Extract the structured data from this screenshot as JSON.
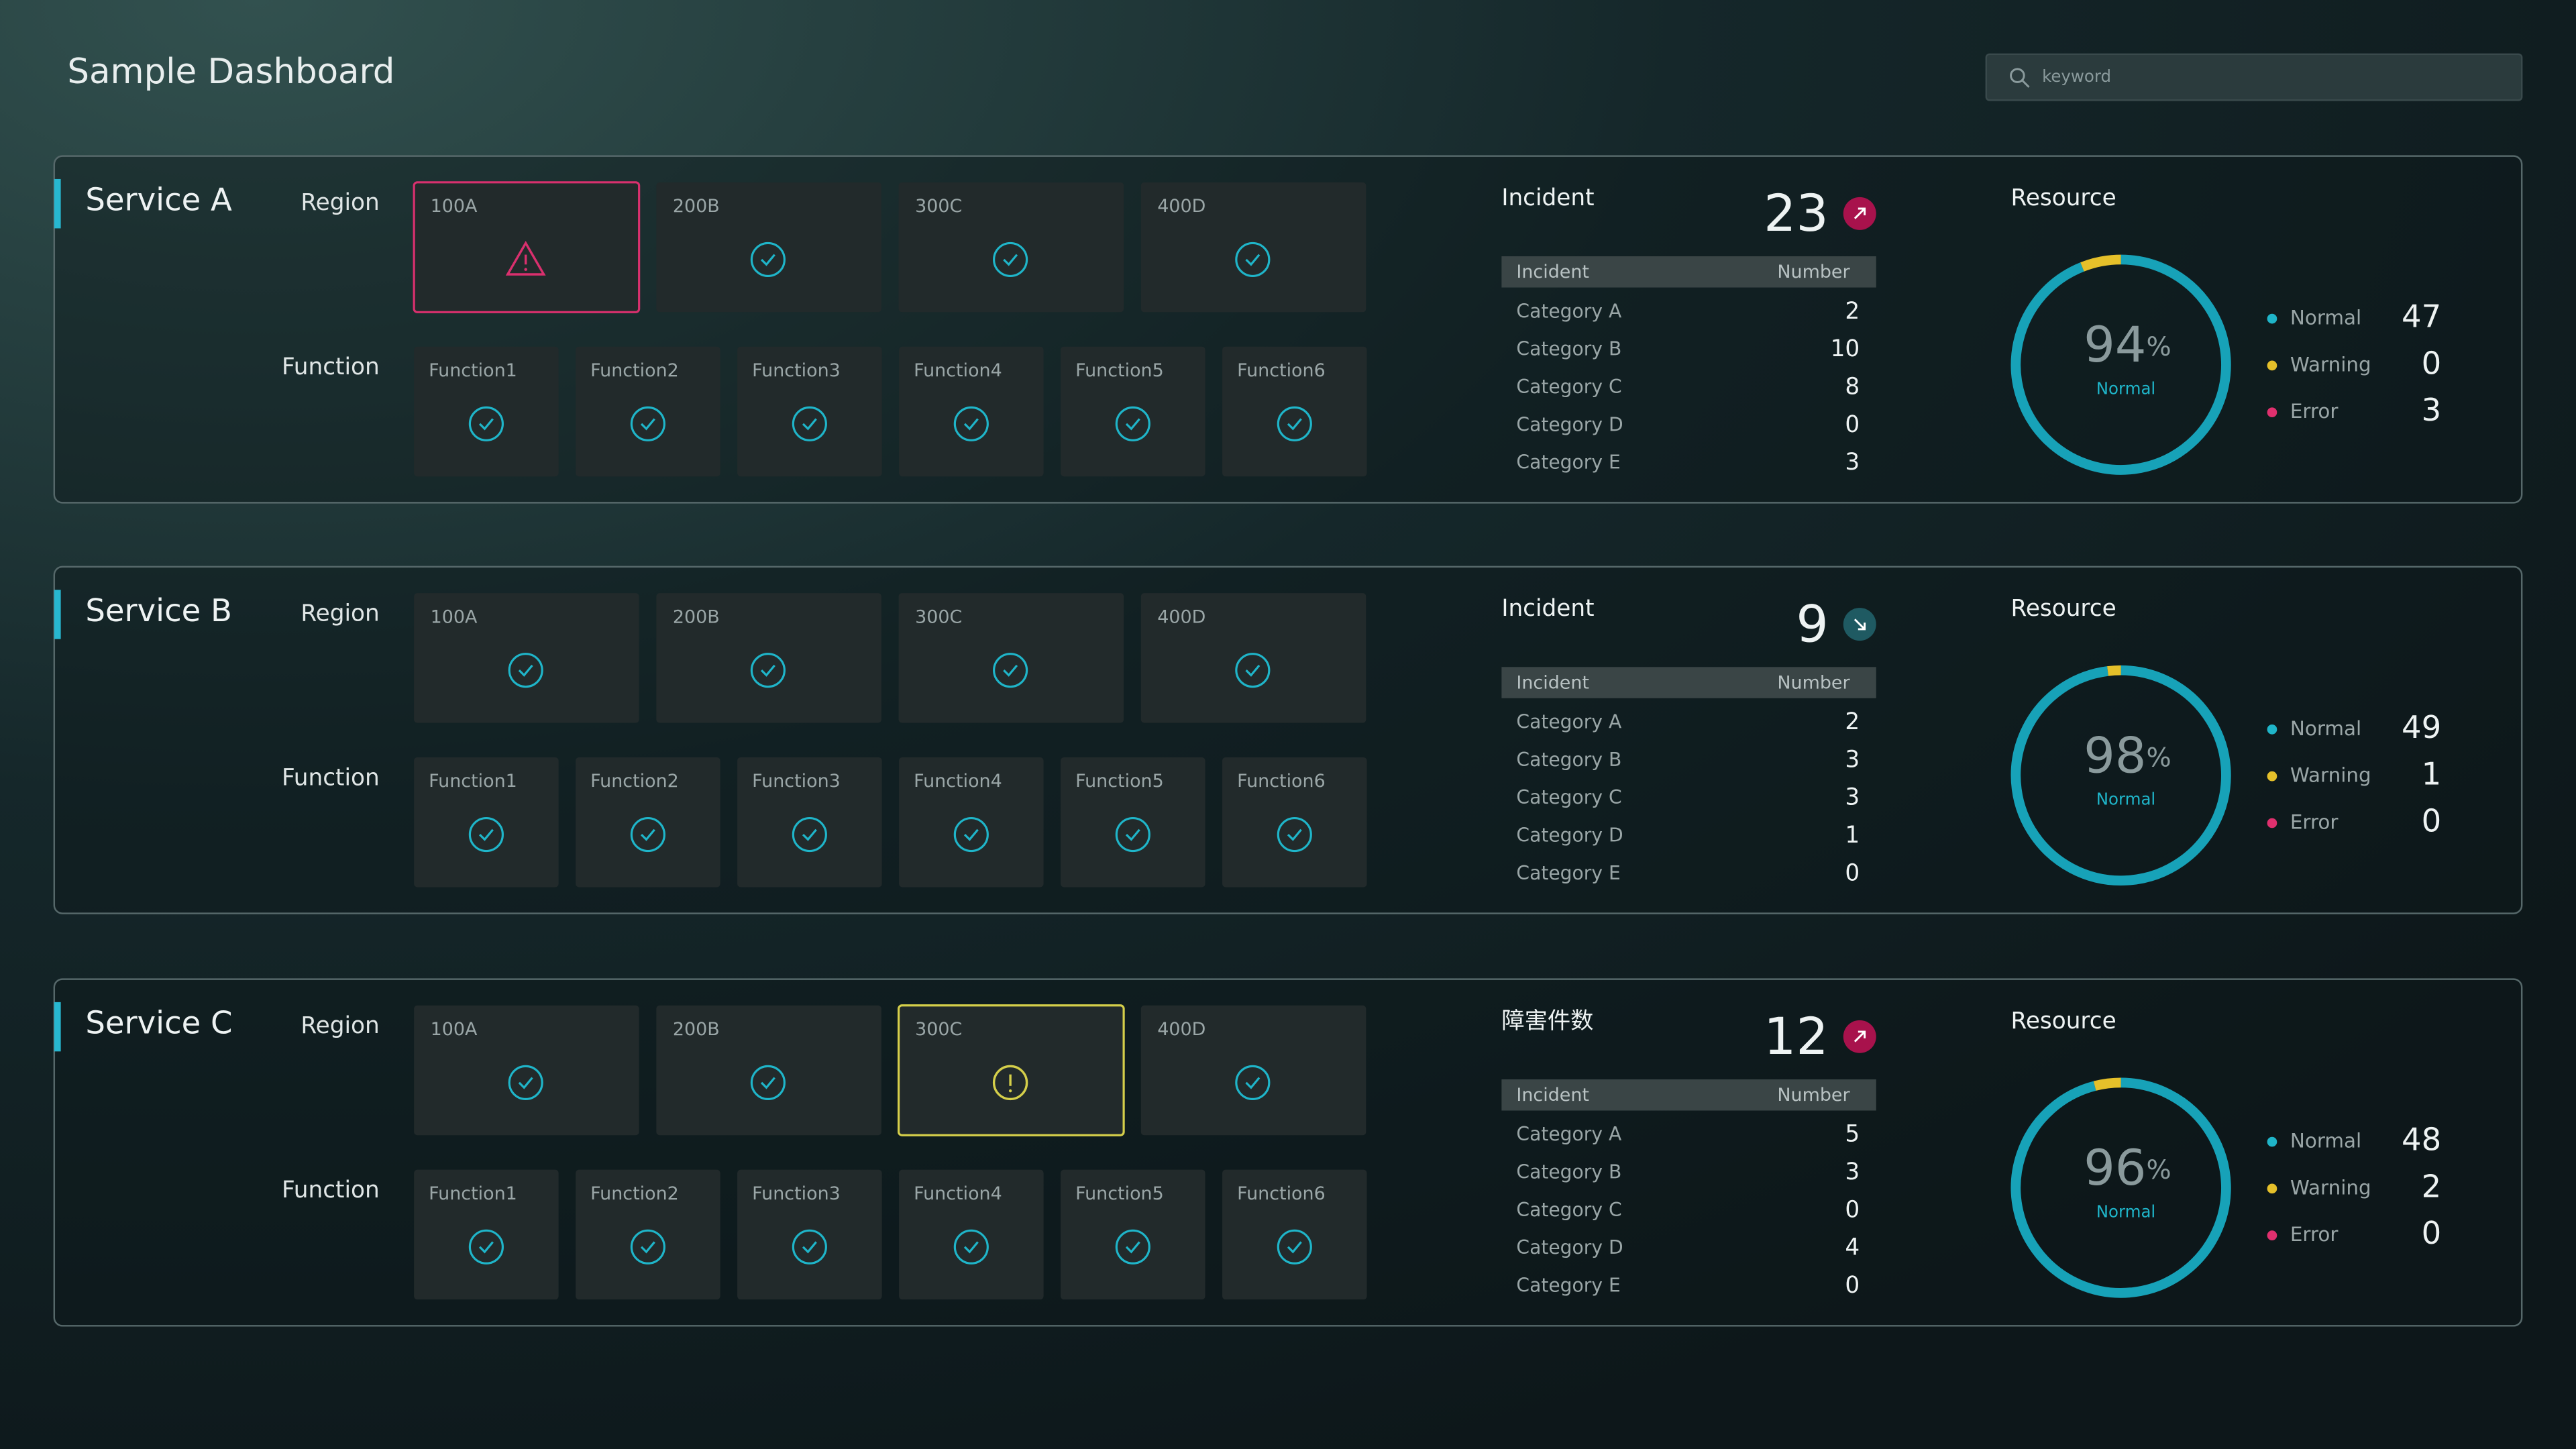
{
  "header": {
    "title": "Sample Dashboard",
    "search_placeholder": "keyword"
  },
  "services": [
    {
      "name": "Service A",
      "region_label": "Region",
      "function_label": "Function",
      "regions": [
        {
          "label": "100A",
          "status": "error"
        },
        {
          "label": "200B",
          "status": "ok"
        },
        {
          "label": "300C",
          "status": "ok"
        },
        {
          "label": "400D",
          "status": "ok"
        }
      ],
      "functions": [
        {
          "label": "Function1",
          "status": "ok"
        },
        {
          "label": "Function2",
          "status": "ok"
        },
        {
          "label": "Function3",
          "status": "ok"
        },
        {
          "label": "Function4",
          "status": "ok"
        },
        {
          "label": "Function5",
          "status": "ok"
        },
        {
          "label": "Function6",
          "status": "ok"
        }
      ],
      "incident": {
        "title": "Incident",
        "total": 23,
        "trend": "up",
        "headers": [
          "Incident",
          "Number"
        ],
        "rows": [
          {
            "category": "Category A",
            "number": 2
          },
          {
            "category": "Category B",
            "number": 10
          },
          {
            "category": "Category C",
            "number": 8
          },
          {
            "category": "Category D",
            "number": 0
          },
          {
            "category": "Category E",
            "number": 3
          }
        ]
      },
      "resource": {
        "title": "Resource",
        "percent": 94,
        "unit": "%",
        "status": "Normal",
        "legend": [
          {
            "label": "Normal",
            "value": 47,
            "color": "#1fb5c9"
          },
          {
            "label": "Warning",
            "value": 0,
            "color": "#e5c02a"
          },
          {
            "label": "Error",
            "value": 3,
            "color": "#e0306e"
          }
        ]
      }
    },
    {
      "name": "Service B",
      "region_label": "Region",
      "function_label": "Function",
      "regions": [
        {
          "label": "100A",
          "status": "ok"
        },
        {
          "label": "200B",
          "status": "ok"
        },
        {
          "label": "300C",
          "status": "ok"
        },
        {
          "label": "400D",
          "status": "ok"
        }
      ],
      "functions": [
        {
          "label": "Function1",
          "status": "ok"
        },
        {
          "label": "Function2",
          "status": "ok"
        },
        {
          "label": "Function3",
          "status": "ok"
        },
        {
          "label": "Function4",
          "status": "ok"
        },
        {
          "label": "Function5",
          "status": "ok"
        },
        {
          "label": "Function6",
          "status": "ok"
        }
      ],
      "incident": {
        "title": "Incident",
        "total": 9,
        "trend": "down",
        "headers": [
          "Incident",
          "Number"
        ],
        "rows": [
          {
            "category": "Category A",
            "number": 2
          },
          {
            "category": "Category B",
            "number": 3
          },
          {
            "category": "Category C",
            "number": 3
          },
          {
            "category": "Category D",
            "number": 1
          },
          {
            "category": "Category E",
            "number": 0
          }
        ]
      },
      "resource": {
        "title": "Resource",
        "percent": 98,
        "unit": "%",
        "status": "Normal",
        "legend": [
          {
            "label": "Normal",
            "value": 49,
            "color": "#1fb5c9"
          },
          {
            "label": "Warning",
            "value": 1,
            "color": "#e5c02a"
          },
          {
            "label": "Error",
            "value": 0,
            "color": "#e0306e"
          }
        ]
      }
    },
    {
      "name": "Service C",
      "region_label": "Region",
      "function_label": "Function",
      "regions": [
        {
          "label": "100A",
          "status": "ok"
        },
        {
          "label": "200B",
          "status": "ok"
        },
        {
          "label": "300C",
          "status": "warning"
        },
        {
          "label": "400D",
          "status": "ok"
        }
      ],
      "functions": [
        {
          "label": "Function1",
          "status": "ok"
        },
        {
          "label": "Function2",
          "status": "ok"
        },
        {
          "label": "Function3",
          "status": "ok"
        },
        {
          "label": "Function4",
          "status": "ok"
        },
        {
          "label": "Function5",
          "status": "ok"
        },
        {
          "label": "Function6",
          "status": "ok"
        }
      ],
      "incident": {
        "title": "障害件数",
        "total": 12,
        "trend": "up",
        "headers": [
          "Incident",
          "Number"
        ],
        "rows": [
          {
            "category": "Category A",
            "number": 5
          },
          {
            "category": "Category B",
            "number": 3
          },
          {
            "category": "Category C",
            "number": 0
          },
          {
            "category": "Category D",
            "number": 4
          },
          {
            "category": "Category E",
            "number": 0
          }
        ]
      },
      "resource": {
        "title": "Resource",
        "percent": 96,
        "unit": "%",
        "status": "Normal",
        "legend": [
          {
            "label": "Normal",
            "value": 48,
            "color": "#1fb5c9"
          },
          {
            "label": "Warning",
            "value": 2,
            "color": "#e5c02a"
          },
          {
            "label": "Error",
            "value": 0,
            "color": "#e0306e"
          }
        ]
      }
    }
  ]
}
